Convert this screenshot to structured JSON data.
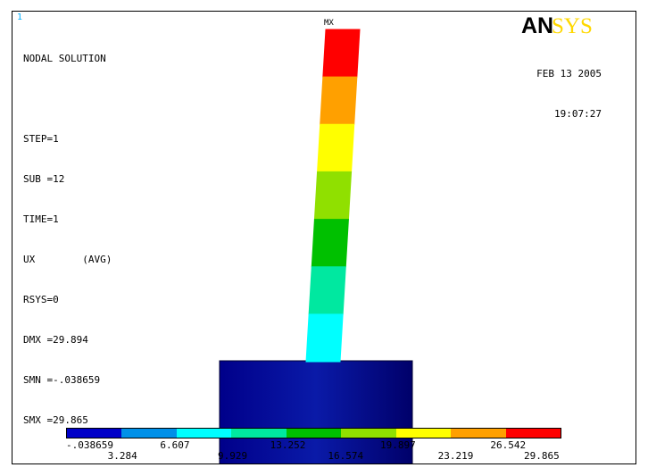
{
  "window": {
    "number": "1"
  },
  "info": [
    "NODAL SOLUTION",
    "",
    "STEP=1",
    "SUB =12",
    "TIME=1",
    "UX        (AVG)",
    "RSYS=0",
    "DMX =29.894",
    "SMN =-.038659",
    "SMX =29.865"
  ],
  "header": {
    "date": "FEB 13 2005",
    "time": "19:07:27"
  },
  "logo": {
    "part1": "AN",
    "part2": "SYS",
    "color1": "#000000",
    "color2": "#ffd800"
  },
  "max_marker": "MX",
  "legend": {
    "colors": [
      "#0000c8",
      "#0090e8",
      "#00ffff",
      "#00e8a0",
      "#00c000",
      "#90e000",
      "#ffff00",
      "#ffa000",
      "#ff0000"
    ],
    "labels_top": [
      "-.038659",
      "6.607",
      "13.252",
      "19.897",
      "26.542"
    ],
    "labels_bottom": [
      "3.284",
      "9.929",
      "16.574",
      "23.219",
      "29.865"
    ]
  }
}
